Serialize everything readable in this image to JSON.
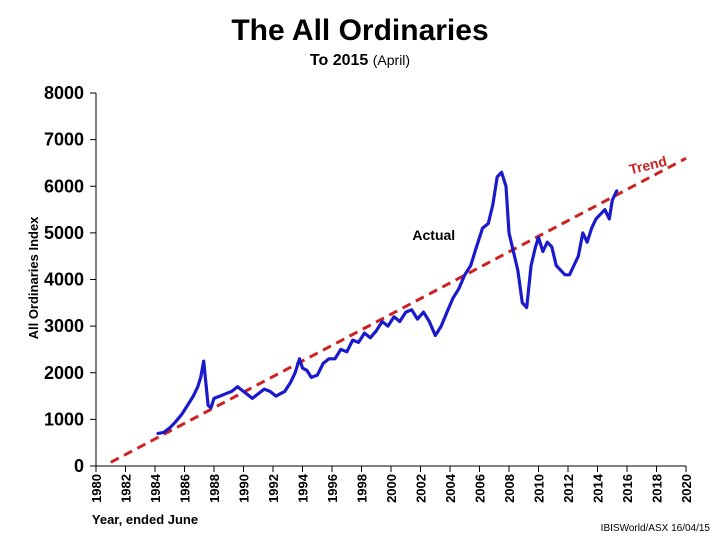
{
  "chart_data": {
    "type": "line",
    "title": "The All Ordinaries",
    "subtitle": "To 2015",
    "subtitle_note": "(April)",
    "xlabel": "Year, ended June",
    "ylabel": "All Ordinaries Index",
    "xlim": [
      1980,
      2020
    ],
    "ylim": [
      0,
      8000
    ],
    "x_ticks": [
      1980,
      1982,
      1984,
      1986,
      1988,
      1990,
      1992,
      1994,
      1996,
      1998,
      2000,
      2002,
      2004,
      2006,
      2008,
      2010,
      2012,
      2014,
      2016,
      2018,
      2020
    ],
    "y_ticks": [
      0,
      1000,
      2000,
      3000,
      4000,
      5000,
      6000,
      7000,
      8000
    ],
    "grid": false,
    "legend": "none",
    "series": [
      {
        "name": "Actual",
        "color": "#1a1acc",
        "style": "solid",
        "x": [
          1984.2,
          1984.6,
          1985.0,
          1985.4,
          1985.8,
          1986.0,
          1986.3,
          1986.6,
          1986.9,
          1987.1,
          1987.3,
          1987.6,
          1987.8,
          1988.0,
          1988.4,
          1988.8,
          1989.2,
          1989.6,
          1989.8,
          1990.2,
          1990.6,
          1991.0,
          1991.4,
          1991.8,
          1992.2,
          1992.5,
          1992.8,
          1993.2,
          1993.5,
          1993.8,
          1994.0,
          1994.3,
          1994.6,
          1995.0,
          1995.4,
          1995.8,
          1996.2,
          1996.6,
          1997.0,
          1997.4,
          1997.8,
          1998.2,
          1998.6,
          1999.0,
          1999.4,
          1999.8,
          2000.2,
          2000.6,
          2001.0,
          2001.4,
          2001.8,
          2002.2,
          2002.6,
          2003.0,
          2003.4,
          2003.8,
          2004.2,
          2004.6,
          2005.0,
          2005.4,
          2005.8,
          2006.2,
          2006.6,
          2006.9,
          2007.2,
          2007.5,
          2007.8,
          2008.0,
          2008.3,
          2008.6,
          2008.9,
          2009.2,
          2009.5,
          2009.8,
          2010.0,
          2010.3,
          2010.6,
          2010.9,
          2011.2,
          2011.5,
          2011.8,
          2012.1,
          2012.4,
          2012.7,
          2013.0,
          2013.3,
          2013.6,
          2013.9,
          2014.2,
          2014.5,
          2014.8,
          2015.0,
          2015.3
        ],
        "y": [
          700,
          720,
          820,
          950,
          1100,
          1200,
          1350,
          1500,
          1700,
          1900,
          2250,
          1300,
          1250,
          1450,
          1500,
          1550,
          1600,
          1700,
          1650,
          1550,
          1450,
          1550,
          1650,
          1600,
          1500,
          1550,
          1600,
          1800,
          2000,
          2300,
          2100,
          2050,
          1900,
          1950,
          2200,
          2300,
          2300,
          2500,
          2450,
          2700,
          2650,
          2850,
          2750,
          2900,
          3100,
          3000,
          3200,
          3100,
          3300,
          3350,
          3150,
          3300,
          3100,
          2800,
          3000,
          3300,
          3600,
          3800,
          4100,
          4300,
          4700,
          5100,
          5200,
          5600,
          6200,
          6300,
          6000,
          5000,
          4600,
          4200,
          3500,
          3400,
          4300,
          4700,
          4900,
          4600,
          4800,
          4700,
          4300,
          4200,
          4100,
          4100,
          4300,
          4500,
          5000,
          4800,
          5100,
          5300,
          5400,
          5500,
          5300,
          5700,
          5900
        ]
      },
      {
        "name": "Trend",
        "color": "#cc2222",
        "style": "dashed",
        "x": [
          1981.0,
          2020.0
        ],
        "y": [
          80,
          6600
        ]
      }
    ],
    "annotations": [
      {
        "text": "Actual",
        "x": 2002.9,
        "y": 4850,
        "color": "#000000",
        "rotate": 0
      },
      {
        "text": "Trend",
        "x": 2017.5,
        "y": 6350,
        "color": "#cc2222",
        "rotate": -14
      }
    ]
  },
  "source": "IBISWorld/ASX   16/04/15"
}
